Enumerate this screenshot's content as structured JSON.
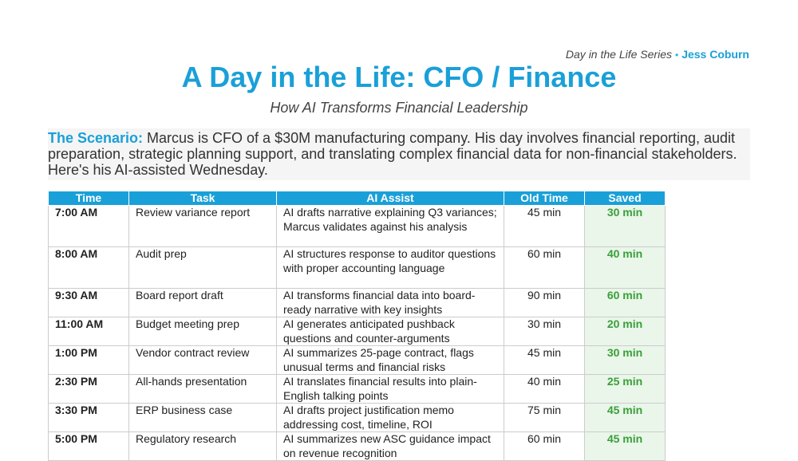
{
  "header": {
    "series": "Day in the Life Series",
    "separator": "•",
    "author": "Jess Coburn"
  },
  "title": "A Day in the Life: CFO / Finance",
  "subtitle": "How AI Transforms Financial Leadership",
  "scenario": {
    "label": "The Scenario:",
    "text": " Marcus is CFO of a $30M manufacturing company. His day involves financial reporting, audit preparation, strategic planning support, and translating complex financial data for non-financial stakeholders. Here's his AI-assisted Wednesday."
  },
  "table": {
    "headers": [
      "Time",
      "Task",
      "AI Assist",
      "Old Time",
      "Saved"
    ],
    "rows": [
      [
        "7:00 AM",
        "Review variance report",
        "AI drafts narrative explaining Q3 variances; Marcus validates against his analysis",
        "45 min",
        "30 min"
      ],
      [
        "8:00 AM",
        "Audit prep",
        "AI structures response to auditor questions with proper accounting language",
        "60 min",
        "40 min"
      ],
      [
        "9:30 AM",
        "Board report draft",
        "AI transforms financial data into board-ready narrative with key insights",
        "90 min",
        "60 min"
      ],
      [
        "11:00 AM",
        "Budget meeting prep",
        "AI generates anticipated pushback questions and counter-arguments",
        "30 min",
        "20 min"
      ],
      [
        "1:00 PM",
        "Vendor contract review",
        "AI summarizes 25-page contract, flags unusual terms and financial risks",
        "45 min",
        "30 min"
      ],
      [
        "2:30 PM",
        "All-hands presentation",
        "AI translates financial results into plain-English talking points",
        "40 min",
        "25 min"
      ],
      [
        "3:30 PM",
        "ERP business case",
        "AI drafts project justification memo addressing cost, timeline, ROI",
        "75 min",
        "45 min"
      ],
      [
        "5:00 PM",
        "Regulatory research",
        "AI summarizes new ASC guidance impact on revenue recognition",
        "60 min",
        "45 min"
      ]
    ]
  },
  "colors": {
    "accent": "#1aa0d8",
    "saved_text": "#3a9f3a",
    "saved_bg": "#e9f6e9",
    "scenario_bg": "#f5f5f5"
  }
}
